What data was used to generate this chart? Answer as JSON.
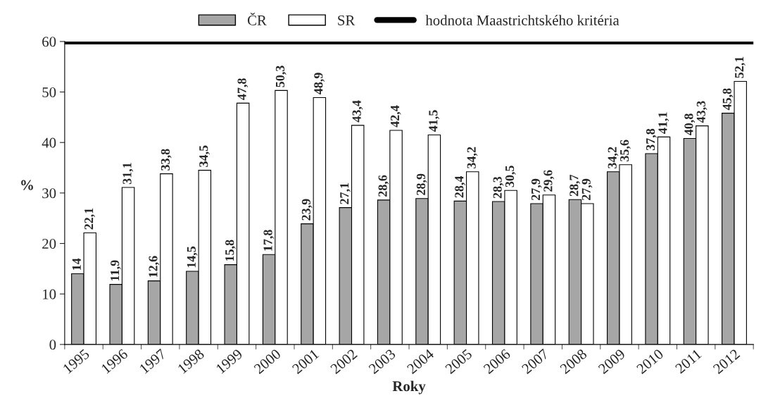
{
  "chart_data": {
    "type": "bar",
    "xlabel": "Roky",
    "ylabel": "%",
    "categories": [
      "1995",
      "1996",
      "1997",
      "1998",
      "1999",
      "2000",
      "2001",
      "2002",
      "2003",
      "2004",
      "2005",
      "2006",
      "2007",
      "2008",
      "2009",
      "2010",
      "2011",
      "2012"
    ],
    "series": [
      {
        "name": "ČR",
        "color": "#a6a6a6",
        "values": [
          14,
          11.9,
          12.6,
          14.5,
          15.8,
          17.8,
          23.9,
          27.1,
          28.6,
          28.9,
          28.4,
          28.3,
          27.9,
          28.7,
          34.2,
          37.8,
          40.8,
          45.8
        ],
        "value_labels": [
          "14",
          "11,9",
          "12,6",
          "14,5",
          "15,8",
          "17,8",
          "23,9",
          "27,1",
          "28,6",
          "28,9",
          "28,4",
          "28,3",
          "27,9",
          "28,7",
          "34,2",
          "37,8",
          "40,8",
          "45,8"
        ]
      },
      {
        "name": "SR",
        "color": "#ffffff",
        "values": [
          22.1,
          31.1,
          33.8,
          34.5,
          47.8,
          50.3,
          48.9,
          43.4,
          42.4,
          41.5,
          34.2,
          30.5,
          29.6,
          27.9,
          35.6,
          41.1,
          43.3,
          52.1
        ],
        "value_labels": [
          "22,1",
          "31,1",
          "33,8",
          "34,5",
          "47,8",
          "50,3",
          "48,9",
          "43,4",
          "42,4",
          "41,5",
          "34,2",
          "30,5",
          "29,6",
          "27,9",
          "35,6",
          "41,1",
          "43,3",
          "52,1"
        ]
      }
    ],
    "ref_lines": [
      {
        "axis": "y",
        "value": 60,
        "label": "hodnota Maastrichtského kritéria",
        "color": "#000000"
      }
    ],
    "ylim": [
      0,
      60
    ],
    "yticks": [
      0,
      10,
      20,
      30,
      40,
      50,
      60
    ],
    "legend": "top",
    "grid": false
  }
}
